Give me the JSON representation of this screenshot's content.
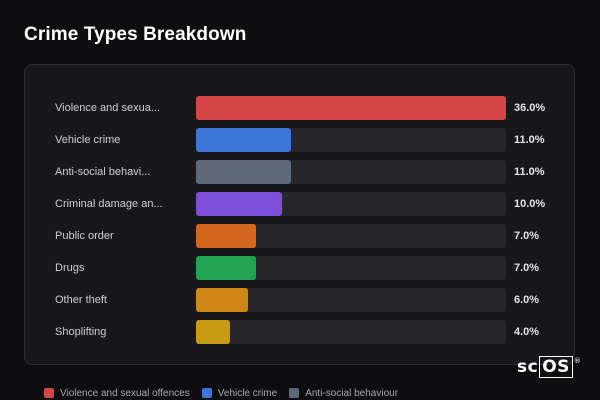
{
  "chart_data": {
    "type": "bar",
    "orientation": "horizontal",
    "title": "Crime Types Breakdown",
    "xlim": [
      0,
      36
    ],
    "unit": "%",
    "categories": [
      "Violence and sexua...",
      "Vehicle crime",
      "Anti-social behavi...",
      "Criminal damage an...",
      "Public order",
      "Drugs",
      "Other theft",
      "Shoplifting"
    ],
    "values": [
      36.0,
      11.0,
      11.0,
      10.0,
      7.0,
      7.0,
      6.0,
      4.0
    ],
    "value_labels": [
      "36.0%",
      "11.0%",
      "11.0%",
      "10.0%",
      "7.0%",
      "7.0%",
      "6.0%",
      "4.0%"
    ],
    "colors": [
      "#d64545",
      "#3b76d8",
      "#5e6878",
      "#7d4fd8",
      "#d4671d",
      "#20a453",
      "#d18716",
      "#c99b14"
    ],
    "legend": {
      "placement": "bottom",
      "entries": [
        {
          "label": "Violence and sexual offences",
          "color": "#d64545"
        },
        {
          "label": "Vehicle crime",
          "color": "#3b76d8"
        },
        {
          "label": "Anti-social behaviour",
          "color": "#5e6878"
        }
      ]
    }
  },
  "logo": {
    "text_a": "sc",
    "text_b": "OS",
    "mark": "®"
  }
}
